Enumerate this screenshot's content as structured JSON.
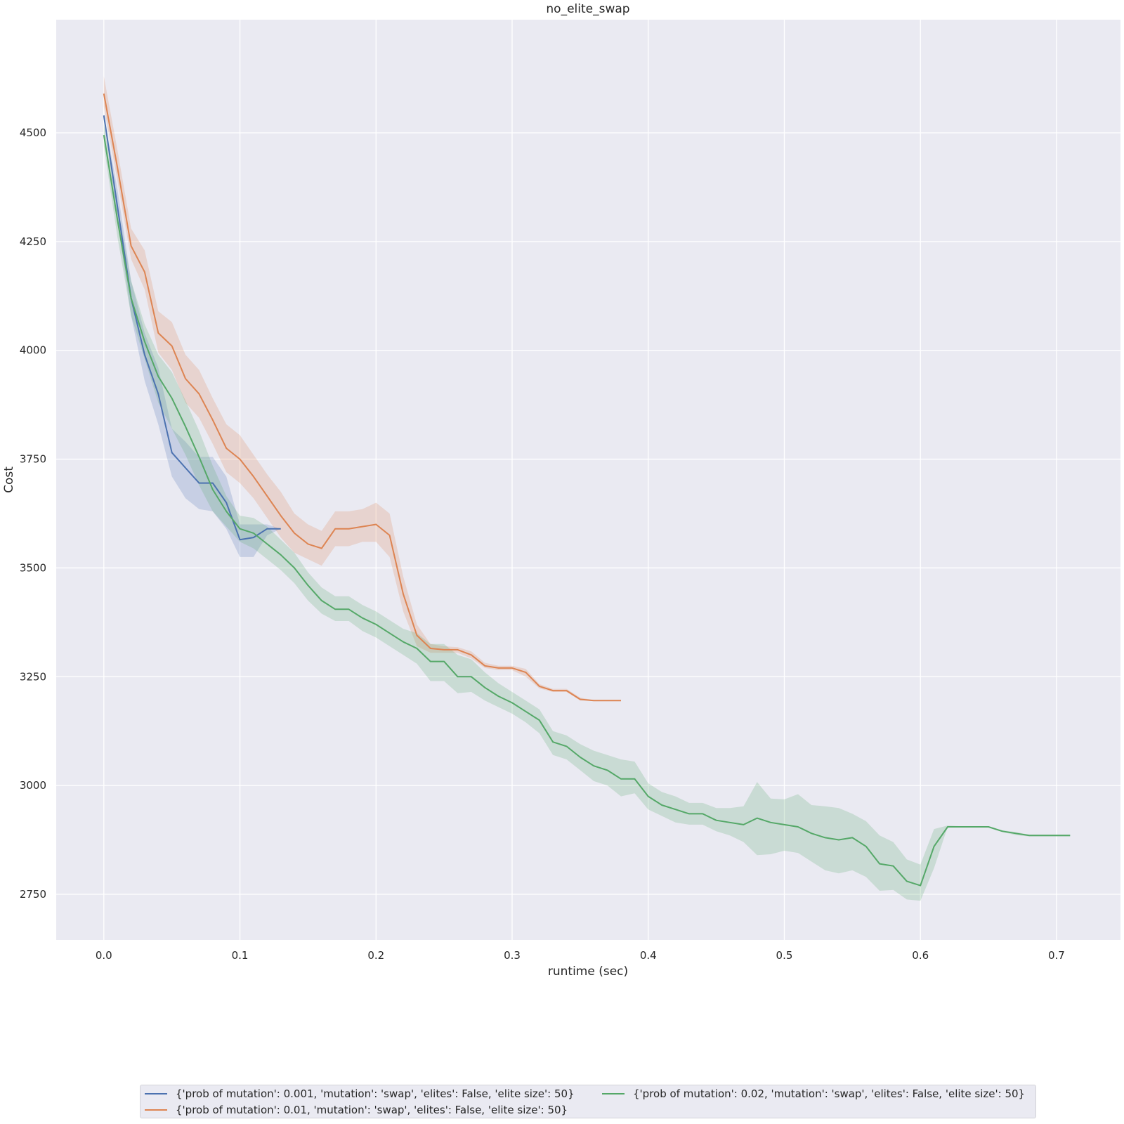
{
  "chart_data": {
    "type": "line",
    "title": "no_elite_swap",
    "xlabel": "runtime (sec)",
    "ylabel": "Cost",
    "xlim": [
      -0.035,
      0.747
    ],
    "ylim": [
      2645,
      4760
    ],
    "xticks": [
      0.0,
      0.1,
      0.2,
      0.3,
      0.4,
      0.5,
      0.6,
      0.7
    ],
    "xtick_labels": [
      "0.0",
      "0.1",
      "0.2",
      "0.3",
      "0.4",
      "0.5",
      "0.6",
      "0.7"
    ],
    "yticks": [
      2750,
      3000,
      3250,
      3500,
      3750,
      4000,
      4250,
      4500
    ],
    "ytick_labels": [
      "2750",
      "3000",
      "3250",
      "3500",
      "3750",
      "4000",
      "4250",
      "4500"
    ],
    "grid": true,
    "legend_position": "bottom-center below plot",
    "background_color": "#eaeaf2",
    "series": [
      {
        "name": "{'prob of mutation': 0.001, 'mutation': 'swap', 'elites': False, 'elite size': 50}",
        "color": "#4c72b0",
        "x": [
          0.0,
          0.01,
          0.02,
          0.03,
          0.04,
          0.05,
          0.06,
          0.07,
          0.08,
          0.09,
          0.1,
          0.11,
          0.12,
          0.13
        ],
        "y": [
          4540,
          4330,
          4120,
          3990,
          3900,
          3765,
          3730,
          3695,
          3695,
          3650,
          3565,
          3570,
          3590,
          3590
        ],
        "band_lower": [
          4540,
          4300,
          4080,
          3930,
          3830,
          3710,
          3660,
          3635,
          3630,
          3590,
          3525,
          3525,
          3575,
          3590
        ],
        "band_upper": [
          4540,
          4370,
          4160,
          4040,
          3960,
          3820,
          3790,
          3755,
          3755,
          3710,
          3600,
          3600,
          3600,
          3590
        ]
      },
      {
        "name": "{'prob of mutation': 0.01, 'mutation': 'swap', 'elites': False, 'elite size': 50}",
        "color": "#dd8452",
        "x": [
          0.0,
          0.01,
          0.02,
          0.03,
          0.04,
          0.05,
          0.06,
          0.07,
          0.08,
          0.09,
          0.1,
          0.11,
          0.12,
          0.13,
          0.14,
          0.15,
          0.16,
          0.17,
          0.18,
          0.19,
          0.2,
          0.21,
          0.22,
          0.23,
          0.24,
          0.25,
          0.26,
          0.27,
          0.28,
          0.29,
          0.3,
          0.31,
          0.32,
          0.33,
          0.34,
          0.35,
          0.36,
          0.37,
          0.38
        ],
        "y": [
          4590,
          4420,
          4240,
          4180,
          4040,
          4010,
          3935,
          3900,
          3840,
          3775,
          3750,
          3710,
          3665,
          3620,
          3580,
          3555,
          3545,
          3590,
          3590,
          3595,
          3600,
          3575,
          3440,
          3345,
          3315,
          3312,
          3312,
          3300,
          3275,
          3270,
          3270,
          3260,
          3228,
          3218,
          3218,
          3198,
          3195,
          3195,
          3195
        ],
        "band_lower": [
          4560,
          4390,
          4210,
          4140,
          3995,
          3955,
          3880,
          3845,
          3785,
          3720,
          3695,
          3660,
          3615,
          3570,
          3535,
          3520,
          3505,
          3550,
          3550,
          3560,
          3560,
          3525,
          3400,
          3320,
          3305,
          3305,
          3305,
          3292,
          3270,
          3265,
          3265,
          3250,
          3223,
          3215,
          3215,
          3195,
          3195,
          3195,
          3195
        ],
        "band_upper": [
          4630,
          4460,
          4280,
          4230,
          4090,
          4065,
          3990,
          3955,
          3890,
          3830,
          3805,
          3760,
          3715,
          3675,
          3625,
          3600,
          3585,
          3630,
          3630,
          3635,
          3650,
          3625,
          3480,
          3370,
          3325,
          3320,
          3318,
          3308,
          3282,
          3275,
          3275,
          3268,
          3233,
          3222,
          3222,
          3202,
          3196,
          3196,
          3196
        ]
      },
      {
        "name": "{'prob of mutation': 0.02, 'mutation': 'swap', 'elites': False, 'elite size': 50}",
        "color": "#55a868",
        "x": [
          0.0,
          0.01,
          0.02,
          0.03,
          0.04,
          0.05,
          0.06,
          0.07,
          0.08,
          0.09,
          0.1,
          0.11,
          0.12,
          0.13,
          0.14,
          0.15,
          0.16,
          0.17,
          0.18,
          0.19,
          0.2,
          0.21,
          0.22,
          0.23,
          0.24,
          0.25,
          0.26,
          0.27,
          0.28,
          0.29,
          0.3,
          0.31,
          0.32,
          0.33,
          0.34,
          0.35,
          0.36,
          0.37,
          0.38,
          0.39,
          0.4,
          0.41,
          0.42,
          0.43,
          0.44,
          0.45,
          0.46,
          0.47,
          0.48,
          0.49,
          0.5,
          0.51,
          0.52,
          0.53,
          0.54,
          0.55,
          0.56,
          0.57,
          0.58,
          0.59,
          0.6,
          0.61,
          0.62,
          0.63,
          0.64,
          0.65,
          0.66,
          0.67,
          0.68,
          0.69,
          0.7,
          0.71
        ],
        "y": [
          4495,
          4300,
          4120,
          4020,
          3940,
          3890,
          3825,
          3755,
          3680,
          3630,
          3590,
          3580,
          3555,
          3530,
          3500,
          3460,
          3425,
          3405,
          3405,
          3385,
          3370,
          3350,
          3330,
          3315,
          3285,
          3285,
          3250,
          3250,
          3225,
          3205,
          3190,
          3170,
          3150,
          3100,
          3090,
          3065,
          3045,
          3035,
          3015,
          3015,
          2975,
          2955,
          2945,
          2935,
          2935,
          2920,
          2915,
          2910,
          2925,
          2915,
          2910,
          2905,
          2890,
          2880,
          2875,
          2880,
          2860,
          2820,
          2815,
          2780,
          2770,
          2860,
          2905,
          2905,
          2905,
          2905,
          2895,
          2890,
          2885,
          2885,
          2885,
          2885
        ],
        "band_lower": [
          4470,
          4260,
          4080,
          3980,
          3880,
          3820,
          3760,
          3690,
          3630,
          3595,
          3560,
          3545,
          3520,
          3495,
          3465,
          3425,
          3395,
          3378,
          3378,
          3355,
          3340,
          3320,
          3300,
          3280,
          3240,
          3240,
          3212,
          3215,
          3195,
          3180,
          3165,
          3145,
          3120,
          3070,
          3060,
          3035,
          3010,
          3000,
          2975,
          2982,
          2945,
          2930,
          2915,
          2910,
          2910,
          2895,
          2885,
          2870,
          2840,
          2842,
          2850,
          2845,
          2825,
          2805,
          2798,
          2805,
          2790,
          2758,
          2760,
          2738,
          2735,
          2810,
          2905,
          2905,
          2905,
          2905,
          2893,
          2886,
          2883,
          2883,
          2883,
          2883
        ],
        "band_upper": [
          4520,
          4335,
          4160,
          4060,
          3990,
          3950,
          3885,
          3815,
          3735,
          3665,
          3620,
          3615,
          3595,
          3565,
          3535,
          3490,
          3455,
          3435,
          3435,
          3415,
          3400,
          3380,
          3360,
          3350,
          3325,
          3325,
          3300,
          3290,
          3260,
          3235,
          3215,
          3195,
          3175,
          3125,
          3115,
          3095,
          3080,
          3070,
          3060,
          3055,
          3005,
          2985,
          2975,
          2960,
          2960,
          2948,
          2948,
          2952,
          3008,
          2970,
          2968,
          2980,
          2955,
          2952,
          2948,
          2935,
          2918,
          2885,
          2870,
          2830,
          2818,
          2900,
          2908,
          2906,
          2906,
          2906,
          2897,
          2893,
          2887,
          2887,
          2887,
          2887
        ]
      }
    ]
  }
}
